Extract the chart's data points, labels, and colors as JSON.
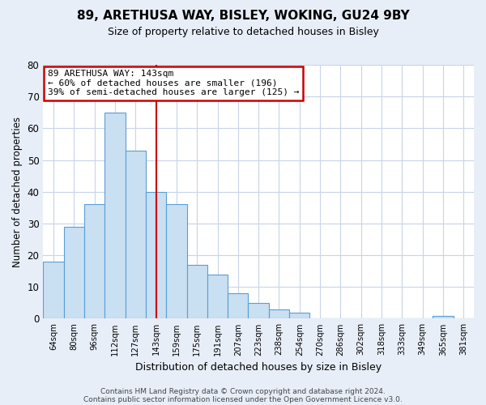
{
  "title": "89, ARETHUSA WAY, BISLEY, WOKING, GU24 9BY",
  "subtitle": "Size of property relative to detached houses in Bisley",
  "xlabel": "Distribution of detached houses by size in Bisley",
  "ylabel": "Number of detached properties",
  "bin_labels": [
    "64sqm",
    "80sqm",
    "96sqm",
    "112sqm",
    "127sqm",
    "143sqm",
    "159sqm",
    "175sqm",
    "191sqm",
    "207sqm",
    "223sqm",
    "238sqm",
    "254sqm",
    "270sqm",
    "286sqm",
    "302sqm",
    "318sqm",
    "333sqm",
    "349sqm",
    "365sqm",
    "381sqm"
  ],
  "bar_values": [
    18,
    29,
    36,
    65,
    53,
    40,
    36,
    17,
    14,
    8,
    5,
    3,
    2,
    0,
    0,
    0,
    0,
    0,
    0,
    1,
    0
  ],
  "bar_color": "#c9dff2",
  "bar_edge_color": "#5a9fd4",
  "vline_x_index": 5,
  "vline_color": "#cc0000",
  "annotation_line1": "89 ARETHUSA WAY: 143sqm",
  "annotation_line2": "← 60% of detached houses are smaller (196)",
  "annotation_line3": "39% of semi-detached houses are larger (125) →",
  "annotation_box_color": "#ffffff",
  "annotation_box_edge_color": "#cc0000",
  "ylim": [
    0,
    80
  ],
  "yticks": [
    0,
    10,
    20,
    30,
    40,
    50,
    60,
    70,
    80
  ],
  "footer_line1": "Contains HM Land Registry data © Crown copyright and database right 2024.",
  "footer_line2": "Contains public sector information licensed under the Open Government Licence v3.0.",
  "bg_color": "#e8eef8",
  "plot_bg_color": "#ffffff",
  "grid_color": "#c8d4e8"
}
